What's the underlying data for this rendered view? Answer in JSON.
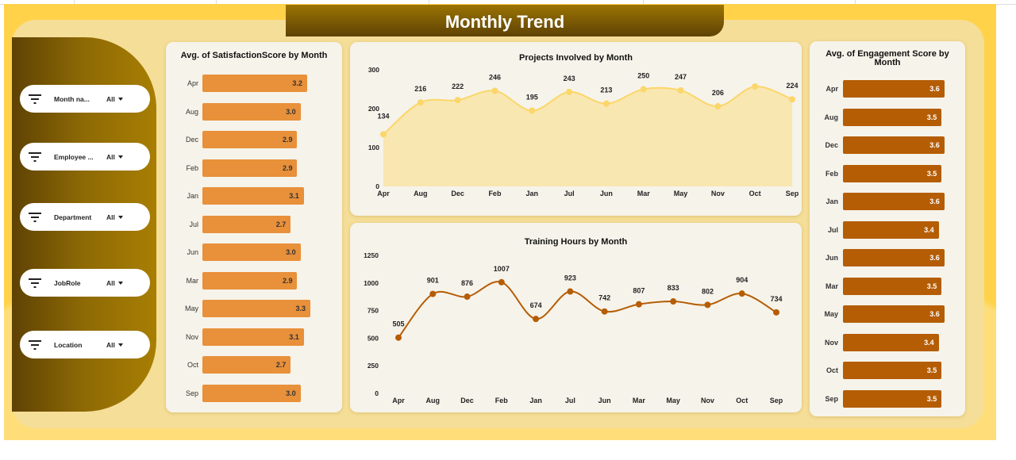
{
  "title": "Monthly Trend",
  "filters": [
    {
      "label": "Month na...",
      "value": "All"
    },
    {
      "label": "Employee ...",
      "value": "All"
    },
    {
      "label": "Department",
      "value": "All"
    },
    {
      "label": "JobRole",
      "value": "All"
    },
    {
      "label": "Location",
      "value": "All"
    }
  ],
  "colors": {
    "satisfaction_bar": "#E8903A",
    "engagement_bar": "#B55D05",
    "projects_line": "#FBD66A",
    "training_line": "#B55D05",
    "background": "#FFD24A"
  },
  "chart_data": [
    {
      "type": "bar",
      "title": "Avg. of SatisfactionScore by Month",
      "orientation": "horizontal",
      "categories": [
        "Apr",
        "Aug",
        "Dec",
        "Feb",
        "Jan",
        "Jul",
        "Jun",
        "Mar",
        "May",
        "Nov",
        "Oct",
        "Sep"
      ],
      "values": [
        3.2,
        3.0,
        2.9,
        2.9,
        3.1,
        2.7,
        3.0,
        2.9,
        3.3,
        3.1,
        2.7,
        3.0
      ],
      "labels": [
        "3.2",
        "3.0",
        "2.9",
        "2.9",
        "3.1",
        "2.7",
        "3.0",
        "2.9",
        "3.3",
        "3.1",
        "2.7",
        "3.0"
      ]
    },
    {
      "type": "area",
      "title": "Projects Involved by Month",
      "categories": [
        "Apr",
        "Aug",
        "Dec",
        "Feb",
        "Jan",
        "Jul",
        "Jun",
        "Mar",
        "May",
        "Nov",
        "Oct",
        "Sep"
      ],
      "values": [
        134,
        216,
        222,
        246,
        195,
        243,
        213,
        250,
        247,
        206,
        257,
        224
      ],
      "labels": [
        "134",
        "216",
        "222",
        "246",
        "195",
        "243",
        "213",
        "250",
        "247",
        "206",
        "",
        "224"
      ],
      "yticks": [
        "0",
        "100",
        "200",
        "300"
      ],
      "ylim": [
        0,
        300
      ]
    },
    {
      "type": "line",
      "title": "Training Hours by Month",
      "categories": [
        "Apr",
        "Aug",
        "Dec",
        "Feb",
        "Jan",
        "Jul",
        "Jun",
        "Mar",
        "May",
        "Nov",
        "Oct",
        "Sep"
      ],
      "values": [
        505,
        901,
        876,
        1007,
        674,
        923,
        742,
        807,
        833,
        802,
        904,
        734
      ],
      "labels": [
        "505",
        "901",
        "876",
        "1007",
        "674",
        "923",
        "742",
        "807",
        "833",
        "802",
        "904",
        "734"
      ],
      "yticks": [
        "0",
        "250",
        "500",
        "750",
        "1000",
        "1250"
      ],
      "ylim": [
        0,
        1250
      ]
    },
    {
      "type": "bar",
      "title": "Avg. of Engagement Score by Month",
      "orientation": "horizontal",
      "categories": [
        "Apr",
        "Aug",
        "Dec",
        "Feb",
        "Jan",
        "Jul",
        "Jun",
        "Mar",
        "May",
        "Nov",
        "Oct",
        "Sep"
      ],
      "values": [
        3.6,
        3.5,
        3.6,
        3.5,
        3.6,
        3.4,
        3.6,
        3.5,
        3.6,
        3.4,
        3.5,
        3.5
      ],
      "labels": [
        "3.6",
        "3.5",
        "3.6",
        "3.5",
        "3.6",
        "3.4",
        "3.6",
        "3.5",
        "3.6",
        "3.4",
        "3.5",
        "3.5"
      ]
    }
  ]
}
